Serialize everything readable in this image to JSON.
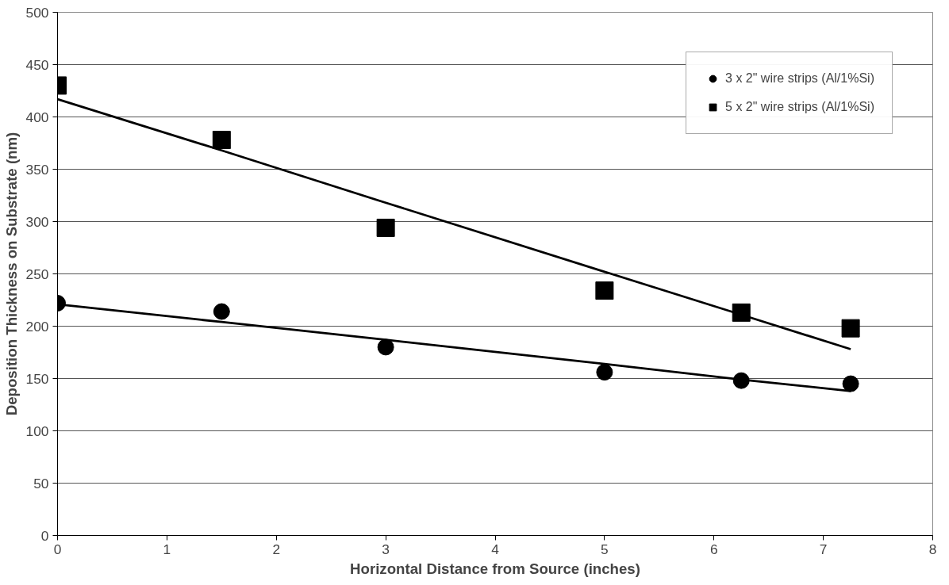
{
  "chart_data": {
    "type": "scatter",
    "xlabel": "Horizontal Distance from Source (inches)",
    "ylabel": "Deposition Thickness on Substrate (nm)",
    "x": [
      0,
      1.5,
      3,
      5,
      6.25,
      7.25
    ],
    "series": [
      {
        "name": "3 x 2\" wire strips (Al/1%Si)",
        "color": "#000000",
        "marker": "circle",
        "values": [
          222,
          214,
          180,
          156,
          148,
          145
        ]
      },
      {
        "name": "5 x 2\" wire strips (Al/1%Si)",
        "color": "#000000",
        "marker": "square",
        "values": [
          430,
          378,
          294,
          234,
          213,
          198
        ]
      },
      {
        "type": "line",
        "color": "#000000",
        "values": [
          221,
          204,
          187,
          164,
          149,
          138
        ]
      },
      {
        "type": "line",
        "color": "#000000",
        "values": [
          417,
          368,
          318,
          252,
          211,
          178
        ]
      }
    ],
    "xlim": [
      0,
      8
    ],
    "xticks": [
      0,
      1,
      2,
      3,
      4,
      5,
      6,
      7,
      8
    ],
    "ylim": [
      0,
      500
    ],
    "yticks": [
      0,
      50,
      100,
      150,
      200,
      250,
      300,
      350,
      400,
      450,
      500
    ],
    "grid": "y",
    "legend": "top right"
  }
}
